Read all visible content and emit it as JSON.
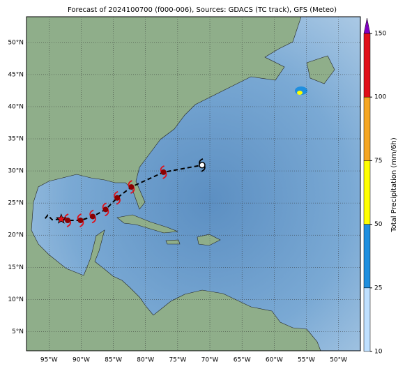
{
  "chart_data": {
    "type": "map",
    "title": "Forecast of 2024100700 (f000-006), Sources: GDACS (TC track), GFS (Meteo)",
    "xlim": [
      -98.5,
      -46.6
    ],
    "ylim": [
      2,
      54
    ],
    "xticks": [
      {
        "value": -95,
        "label": "95°W"
      },
      {
        "value": -90,
        "label": "90°W"
      },
      {
        "value": -85,
        "label": "85°W"
      },
      {
        "value": -80,
        "label": "80°W"
      },
      {
        "value": -75,
        "label": "75°W"
      },
      {
        "value": -70,
        "label": "70°W"
      },
      {
        "value": -65,
        "label": "65°W"
      },
      {
        "value": -60,
        "label": "60°W"
      },
      {
        "value": -55,
        "label": "55°W"
      },
      {
        "value": -50,
        "label": "50°W"
      }
    ],
    "yticks": [
      {
        "value": 5,
        "label": "5°N"
      },
      {
        "value": 10,
        "label": "10°N"
      },
      {
        "value": 15,
        "label": "15°N"
      },
      {
        "value": 20,
        "label": "20°N"
      },
      {
        "value": 25,
        "label": "25°N"
      },
      {
        "value": 30,
        "label": "30°N"
      },
      {
        "value": 35,
        "label": "35°N"
      },
      {
        "value": 40,
        "label": "40°N"
      },
      {
        "value": 45,
        "label": "45°N"
      },
      {
        "value": 50,
        "label": "50°N"
      }
    ],
    "grid": true,
    "track": {
      "color": "#000000",
      "lon": [
        -95.6,
        -95.2,
        -94.5,
        -93.1,
        -92.1,
        -90.1,
        -88.2,
        -86.2,
        -84.4,
        -82.2,
        -77.2,
        -71.2
      ],
      "lat": [
        22.6,
        23.1,
        22.4,
        22.5,
        22.3,
        22.3,
        22.9,
        24.0,
        25.8,
        27.5,
        29.8,
        30.9
      ]
    },
    "positions": {
      "color": "#e0101a",
      "last_color": "#000000",
      "lon": [
        -92.1,
        -90.1,
        -88.2,
        -86.2,
        -84.4,
        -82.2,
        -77.2,
        -71.2
      ],
      "lat": [
        22.3,
        22.3,
        22.9,
        24.0,
        25.8,
        27.5,
        29.8,
        30.9
      ]
    },
    "start": {
      "color": "#e0101a",
      "lon": -93.1,
      "lat": 22.5
    },
    "colorbar": {
      "label": "Total Precipitation (mm/6h)",
      "levels": [
        10,
        25,
        50,
        75,
        100,
        150
      ],
      "colors": [
        "#bfe0ff",
        "#1f8fdf",
        "#ffff00",
        "#f5a623",
        "#e0101a"
      ],
      "extend_color": "#8000c0"
    }
  }
}
